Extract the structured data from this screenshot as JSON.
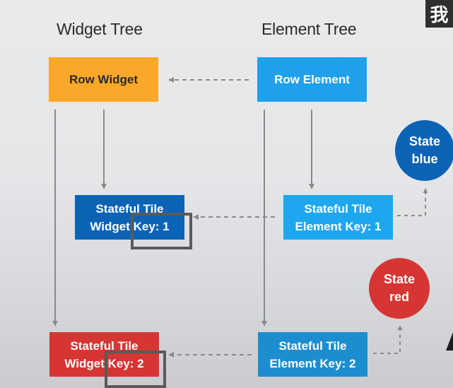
{
  "titles": {
    "widget_tree": "Widget Tree",
    "element_tree": "Element Tree"
  },
  "nodes": {
    "row_widget": "Row Widget",
    "row_element": "Row Element",
    "tile_widget_1": "Stateful Tile\nWidget Key: 1",
    "tile_element_1": "Stateful Tile\nElement Key: 1",
    "tile_widget_2": "Stateful Tile\nWidget Key: 2",
    "tile_element_2": "Stateful Tile\nElement Key: 2"
  },
  "states": {
    "blue": "State\nblue",
    "red": "State\nred"
  },
  "watermark": "我",
  "colors": {
    "row_widget": "#f9a82a",
    "row_element": "#1fa0ea",
    "tile_widget_1": "#0c63b5",
    "tile_element_1": "#1ca7ef",
    "tile_widget_2": "#d53634",
    "tile_element_2": "#1c8ed0",
    "state_blue": "#0c63b5",
    "state_red": "#d53634",
    "connector": "#8a8a8a"
  }
}
